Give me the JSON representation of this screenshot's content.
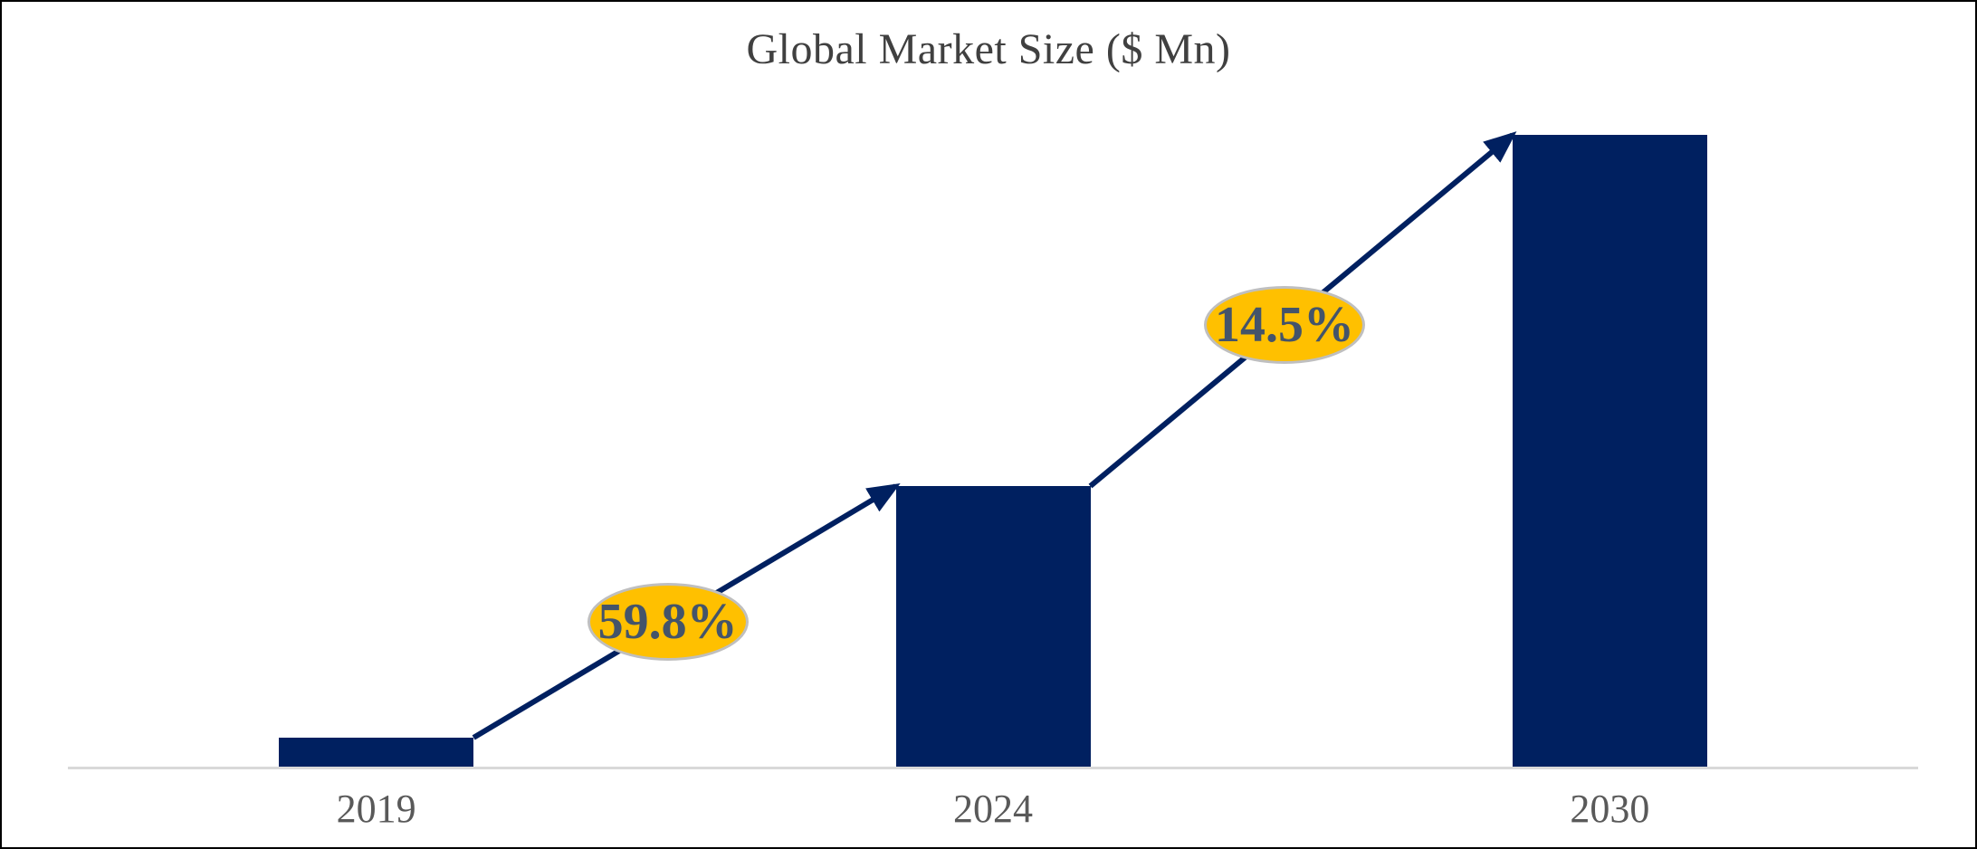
{
  "chart_data": {
    "type": "bar",
    "title": "Global Market Size ($ Mn)",
    "categories": [
      "2019",
      "2024",
      "2030"
    ],
    "values_relative": [
      4.6,
      44.4,
      100
    ],
    "values_note": "No y-axis scale shown; values estimated as bar height in percent of the tallest (2030) bar",
    "annotations": [
      {
        "label": "59.8%",
        "from": "2019",
        "to": "2024"
      },
      {
        "label": "14.5%",
        "from": "2024",
        "to": "2030"
      }
    ],
    "xlabel": "",
    "ylabel": "",
    "y_axis_visible": false,
    "gridlines": false,
    "legend_visible": false,
    "colors": {
      "bar": "#002060",
      "arrow": "#002060",
      "badge_fill": "#FFC000",
      "badge_border": "#BFBFBF",
      "badge_text": "#44546A",
      "axis_line": "#D9D9D9",
      "tick_label": "#595959",
      "title": "#404040",
      "figure_border": "#000000",
      "background": "#FFFFFF"
    }
  }
}
